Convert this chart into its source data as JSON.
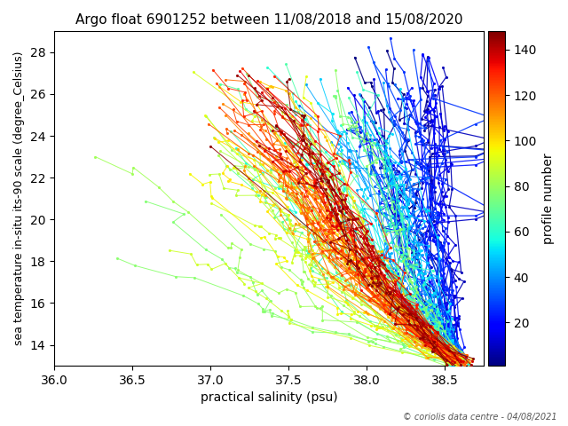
{
  "title": "Argo float 6901252 between 11/08/2018 and 15/08/2020",
  "xlabel": "practical salinity (psu)",
  "ylabel": "sea temperature in-situ its-90 scale (degree_Celsius)",
  "colorbar_label": "profile number",
  "copyright": "© coriolis data centre - 04/08/2021",
  "xlim": [
    36.0,
    38.75
  ],
  "ylim": [
    13.0,
    29.0
  ],
  "xticks": [
    36.0,
    36.5,
    37.0,
    37.5,
    38.0,
    38.5
  ],
  "yticks": [
    14,
    16,
    18,
    20,
    22,
    24,
    26,
    28
  ],
  "n_profiles": 148,
  "cmap": "jet",
  "vmin": 1,
  "vmax": 148,
  "colorbar_ticks": [
    20,
    40,
    60,
    80,
    100,
    120,
    140
  ],
  "sal_convergence": 38.58,
  "temp_convergence": 13.1
}
